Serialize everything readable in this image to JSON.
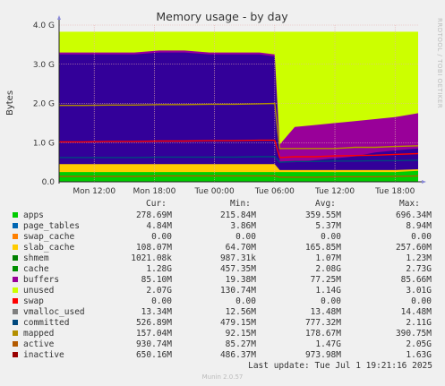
{
  "chart_data": {
    "type": "area",
    "title": "Memory usage - by day",
    "ylabel": "Bytes",
    "y_ticks": [
      "0.0",
      "1.0 G",
      "2.0 G",
      "3.0 G",
      "4.0 G"
    ],
    "ylim": [
      0,
      4.0
    ],
    "x_ticks": [
      "Mon 12:00",
      "Mon 18:00",
      "Tue 00:00",
      "Tue 06:00",
      "Tue 12:00",
      "Tue 18:00"
    ],
    "xlim_hours": [
      8.5,
      20.3
    ],
    "unit": "GB",
    "grid": true,
    "colors": {
      "apps": "#00cc00",
      "page_tables": "#0066b3",
      "swap_cache": "#ff8000",
      "slab_cache": "#ffcc00",
      "shmem": "#330099",
      "cache": "#990099",
      "buffers": "#ccff00",
      "unused": "#ff0000",
      "swap": "#808080",
      "vmalloc_used": "#008f00",
      "committed": "#00487d",
      "mapped": "#b35a00",
      "active": "#b38f00",
      "inactive": "#6b006b"
    },
    "series_stack_levels": {
      "note_x": "hours since Mon 00:00",
      "x": [
        8.5,
        11.0,
        13.5,
        16.0,
        18.5,
        21.0,
        23.5,
        26.0,
        28.5,
        30.0,
        30.5,
        32.0,
        34.0,
        36.0,
        38.0,
        40.0,
        42.0,
        44.3
      ],
      "apps": [
        0.25,
        0.25,
        0.25,
        0.25,
        0.25,
        0.25,
        0.25,
        0.25,
        0.25,
        0.25,
        0.25,
        0.25,
        0.25,
        0.25,
        0.25,
        0.25,
        0.25,
        0.28
      ],
      "slab_cache": [
        0.45,
        0.45,
        0.45,
        0.45,
        0.45,
        0.45,
        0.45,
        0.45,
        0.45,
        0.45,
        0.3,
        0.3,
        0.3,
        0.3,
        0.3,
        0.3,
        0.3,
        0.32
      ],
      "shmem": [
        3.25,
        3.25,
        3.25,
        3.25,
        3.3,
        3.3,
        3.25,
        3.25,
        3.25,
        3.2,
        0.5,
        0.5,
        0.55,
        0.6,
        0.65,
        0.75,
        0.8,
        0.85
      ],
      "cache": [
        3.3,
        3.3,
        3.3,
        3.3,
        3.35,
        3.35,
        3.3,
        3.3,
        3.3,
        3.25,
        0.95,
        1.4,
        1.45,
        1.5,
        1.55,
        1.6,
        1.65,
        1.75
      ]
    },
    "total_gb": 3.83,
    "table_headers": [
      "Cur:",
      "Min:",
      "Avg:",
      "Max:"
    ],
    "series": [
      {
        "name": "apps",
        "cur": "278.69M",
        "min": "215.84M",
        "avg": "359.55M",
        "max": "696.34M"
      },
      {
        "name": "page_tables",
        "cur": "4.84M",
        "min": "3.86M",
        "avg": "5.37M",
        "max": "8.94M"
      },
      {
        "name": "swap_cache",
        "cur": "0.00",
        "min": "0.00",
        "avg": "0.00",
        "max": "0.00"
      },
      {
        "name": "slab_cache",
        "cur": "108.07M",
        "min": "64.70M",
        "avg": "165.85M",
        "max": "257.60M"
      },
      {
        "name": "shmem",
        "cur": "1021.08k",
        "min": "987.31k",
        "avg": "1.07M",
        "max": "1.23M"
      },
      {
        "name": "cache",
        "cur": "1.28G",
        "min": "457.35M",
        "avg": "2.08G",
        "max": "2.73G"
      },
      {
        "name": "buffers",
        "cur": "85.10M",
        "min": "19.38M",
        "avg": "77.25M",
        "max": "85.66M"
      },
      {
        "name": "unused",
        "cur": "2.07G",
        "min": "130.74M",
        "avg": "1.14G",
        "max": "3.01G"
      },
      {
        "name": "swap",
        "cur": "0.00",
        "min": "0.00",
        "avg": "0.00",
        "max": "0.00"
      },
      {
        "name": "vmalloc_used",
        "cur": "13.34M",
        "min": "12.56M",
        "avg": "13.48M",
        "max": "14.48M"
      },
      {
        "name": "committed",
        "cur": "526.89M",
        "min": "479.15M",
        "avg": "777.32M",
        "max": "2.11G"
      },
      {
        "name": "mapped",
        "cur": "157.04M",
        "min": "92.15M",
        "avg": "178.67M",
        "max": "390.75M"
      },
      {
        "name": "active",
        "cur": "930.74M",
        "min": "85.27M",
        "avg": "1.47G",
        "max": "2.05G"
      },
      {
        "name": "inactive",
        "cur": "650.16M",
        "min": "486.37M",
        "avg": "973.98M",
        "max": "1.63G"
      }
    ]
  },
  "footer": {
    "last_update": "Last update: Tue Jul  1 19:21:16 2025",
    "munin_version": "Munin 2.0.57",
    "rrd_credit": "RRDTOOL / TOBI OETIKER"
  }
}
